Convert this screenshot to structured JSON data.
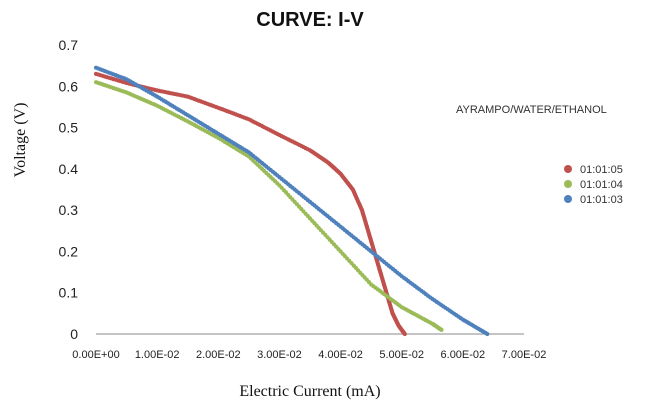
{
  "chart_data": {
    "type": "scatter",
    "title": "CURVE: I-V",
    "xlabel": "Electric Current (mA)",
    "ylabel": "Voltage (V)",
    "annotation": "AYRAMPO/WATER/ETHANOL",
    "xlim": [
      0,
      0.07
    ],
    "ylim": [
      0,
      0.7
    ],
    "xticks": [
      "0.00E+00",
      "1.00E-02",
      "2.00E-02",
      "3.00E-02",
      "4.00E-02",
      "5.00E-02",
      "6.00E-02",
      "7.00E-02"
    ],
    "yticks": [
      "0",
      "0.1",
      "0.2",
      "0.3",
      "0.4",
      "0.5",
      "0.6",
      "0.7"
    ],
    "grid": false,
    "legend_position": "right",
    "series": [
      {
        "name": "01:01:05",
        "color": "#c0504d",
        "points": [
          [
            0.0,
            0.63
          ],
          [
            0.005,
            0.608
          ],
          [
            0.01,
            0.59
          ],
          [
            0.015,
            0.575
          ],
          [
            0.02,
            0.548
          ],
          [
            0.025,
            0.52
          ],
          [
            0.03,
            0.482
          ],
          [
            0.035,
            0.445
          ],
          [
            0.038,
            0.415
          ],
          [
            0.04,
            0.388
          ],
          [
            0.042,
            0.35
          ],
          [
            0.0435,
            0.3
          ],
          [
            0.0445,
            0.25
          ],
          [
            0.0455,
            0.2
          ],
          [
            0.0465,
            0.15
          ],
          [
            0.0475,
            0.1
          ],
          [
            0.0485,
            0.05
          ],
          [
            0.0495,
            0.02
          ],
          [
            0.0505,
            0.0
          ]
        ]
      },
      {
        "name": "01:01:04",
        "color": "#9bbb59",
        "points": [
          [
            0.0,
            0.61
          ],
          [
            0.005,
            0.585
          ],
          [
            0.01,
            0.553
          ],
          [
            0.015,
            0.515
          ],
          [
            0.02,
            0.475
          ],
          [
            0.025,
            0.43
          ],
          [
            0.03,
            0.36
          ],
          [
            0.035,
            0.28
          ],
          [
            0.04,
            0.2
          ],
          [
            0.045,
            0.12
          ],
          [
            0.05,
            0.065
          ],
          [
            0.055,
            0.025
          ],
          [
            0.0565,
            0.01
          ]
        ]
      },
      {
        "name": "01:01:03",
        "color": "#4f81bd",
        "points": [
          [
            0.0,
            0.645
          ],
          [
            0.005,
            0.617
          ],
          [
            0.01,
            0.575
          ],
          [
            0.015,
            0.53
          ],
          [
            0.02,
            0.485
          ],
          [
            0.025,
            0.44
          ],
          [
            0.03,
            0.38
          ],
          [
            0.035,
            0.32
          ],
          [
            0.04,
            0.26
          ],
          [
            0.045,
            0.2
          ],
          [
            0.05,
            0.14
          ],
          [
            0.055,
            0.085
          ],
          [
            0.06,
            0.035
          ],
          [
            0.064,
            0.0
          ]
        ]
      }
    ]
  }
}
